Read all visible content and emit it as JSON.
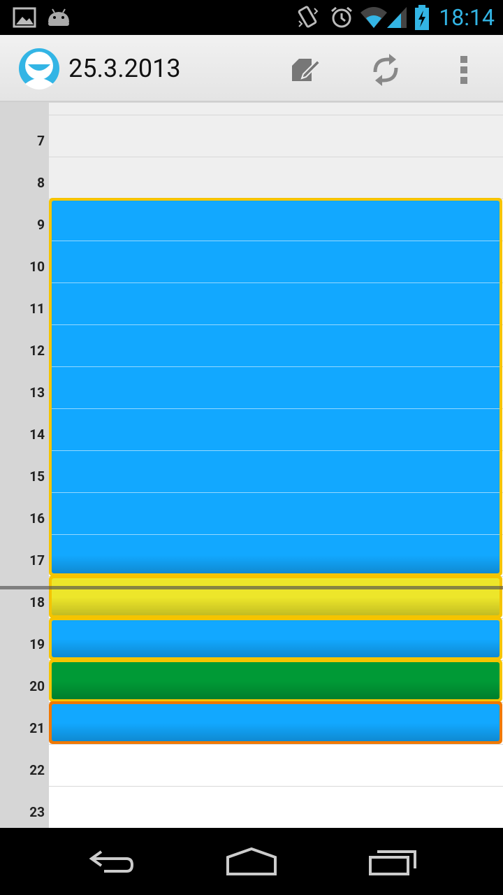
{
  "status_bar": {
    "time": "18:14",
    "icons": [
      "image-icon",
      "android-icon",
      "vibrate-icon",
      "alarm-icon",
      "wifi-icon",
      "signal-icon",
      "battery-charging-icon"
    ],
    "accent_color": "#33b5e5"
  },
  "action_bar": {
    "title": "25.3.2013",
    "actions": [
      "edit-icon",
      "sync-icon",
      "overflow-menu-icon"
    ]
  },
  "calendar": {
    "hours": [
      "7",
      "8",
      "9",
      "10",
      "11",
      "12",
      "13",
      "14",
      "15",
      "16",
      "17",
      "18",
      "19",
      "20",
      "21",
      "22",
      "23"
    ],
    "events": [
      {
        "start_hour": 9,
        "end_hour": 18,
        "fill": "#12a8ff",
        "border": "#f5c400"
      },
      {
        "start_hour": 18,
        "end_hour": 19,
        "fill": "#ede62a",
        "border": "#f5c400"
      },
      {
        "start_hour": 19,
        "end_hour": 20,
        "fill": "#12a8ff",
        "border": "#f5c400"
      },
      {
        "start_hour": 20,
        "end_hour": 21,
        "fill": "#009a36",
        "border": "#f5c400"
      },
      {
        "start_hour": 21,
        "end_hour": 22,
        "fill": "#12a8ff",
        "border": "#f07800"
      }
    ],
    "current_time": "18:00"
  },
  "nav_bar": {
    "buttons": [
      "back-icon",
      "home-icon",
      "recent-apps-icon"
    ]
  }
}
